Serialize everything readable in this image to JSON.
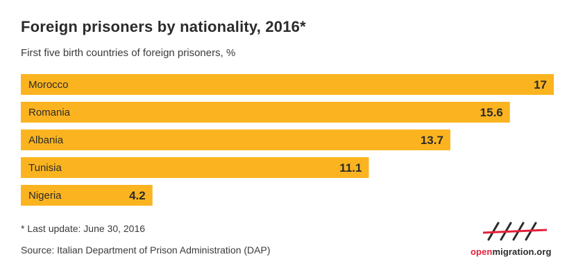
{
  "chart_data": {
    "type": "bar",
    "orientation": "horizontal",
    "title": "Foreign prisoners by nationality, 2016*",
    "subtitle": "First five birth countries of foreign prisoners, %",
    "categories": [
      "Morocco",
      "Romania",
      "Albania",
      "Tunisia",
      "Nigeria"
    ],
    "values": [
      17,
      15.6,
      13.7,
      11.1,
      4.2
    ],
    "value_labels": [
      "17",
      "15.6",
      "13.7",
      "11.1",
      "4.2"
    ],
    "xlim": [
      0,
      17
    ],
    "grid": false,
    "legend": "none",
    "bar_color": "#fbb41f"
  },
  "footnote": "* Last update: June 30, 2016",
  "source": "Source: Italian Department of Prison Administration (DAP)",
  "logo": {
    "brand_part": "open",
    "rest_part": "migration.org",
    "brand_color": "#e4203a"
  }
}
